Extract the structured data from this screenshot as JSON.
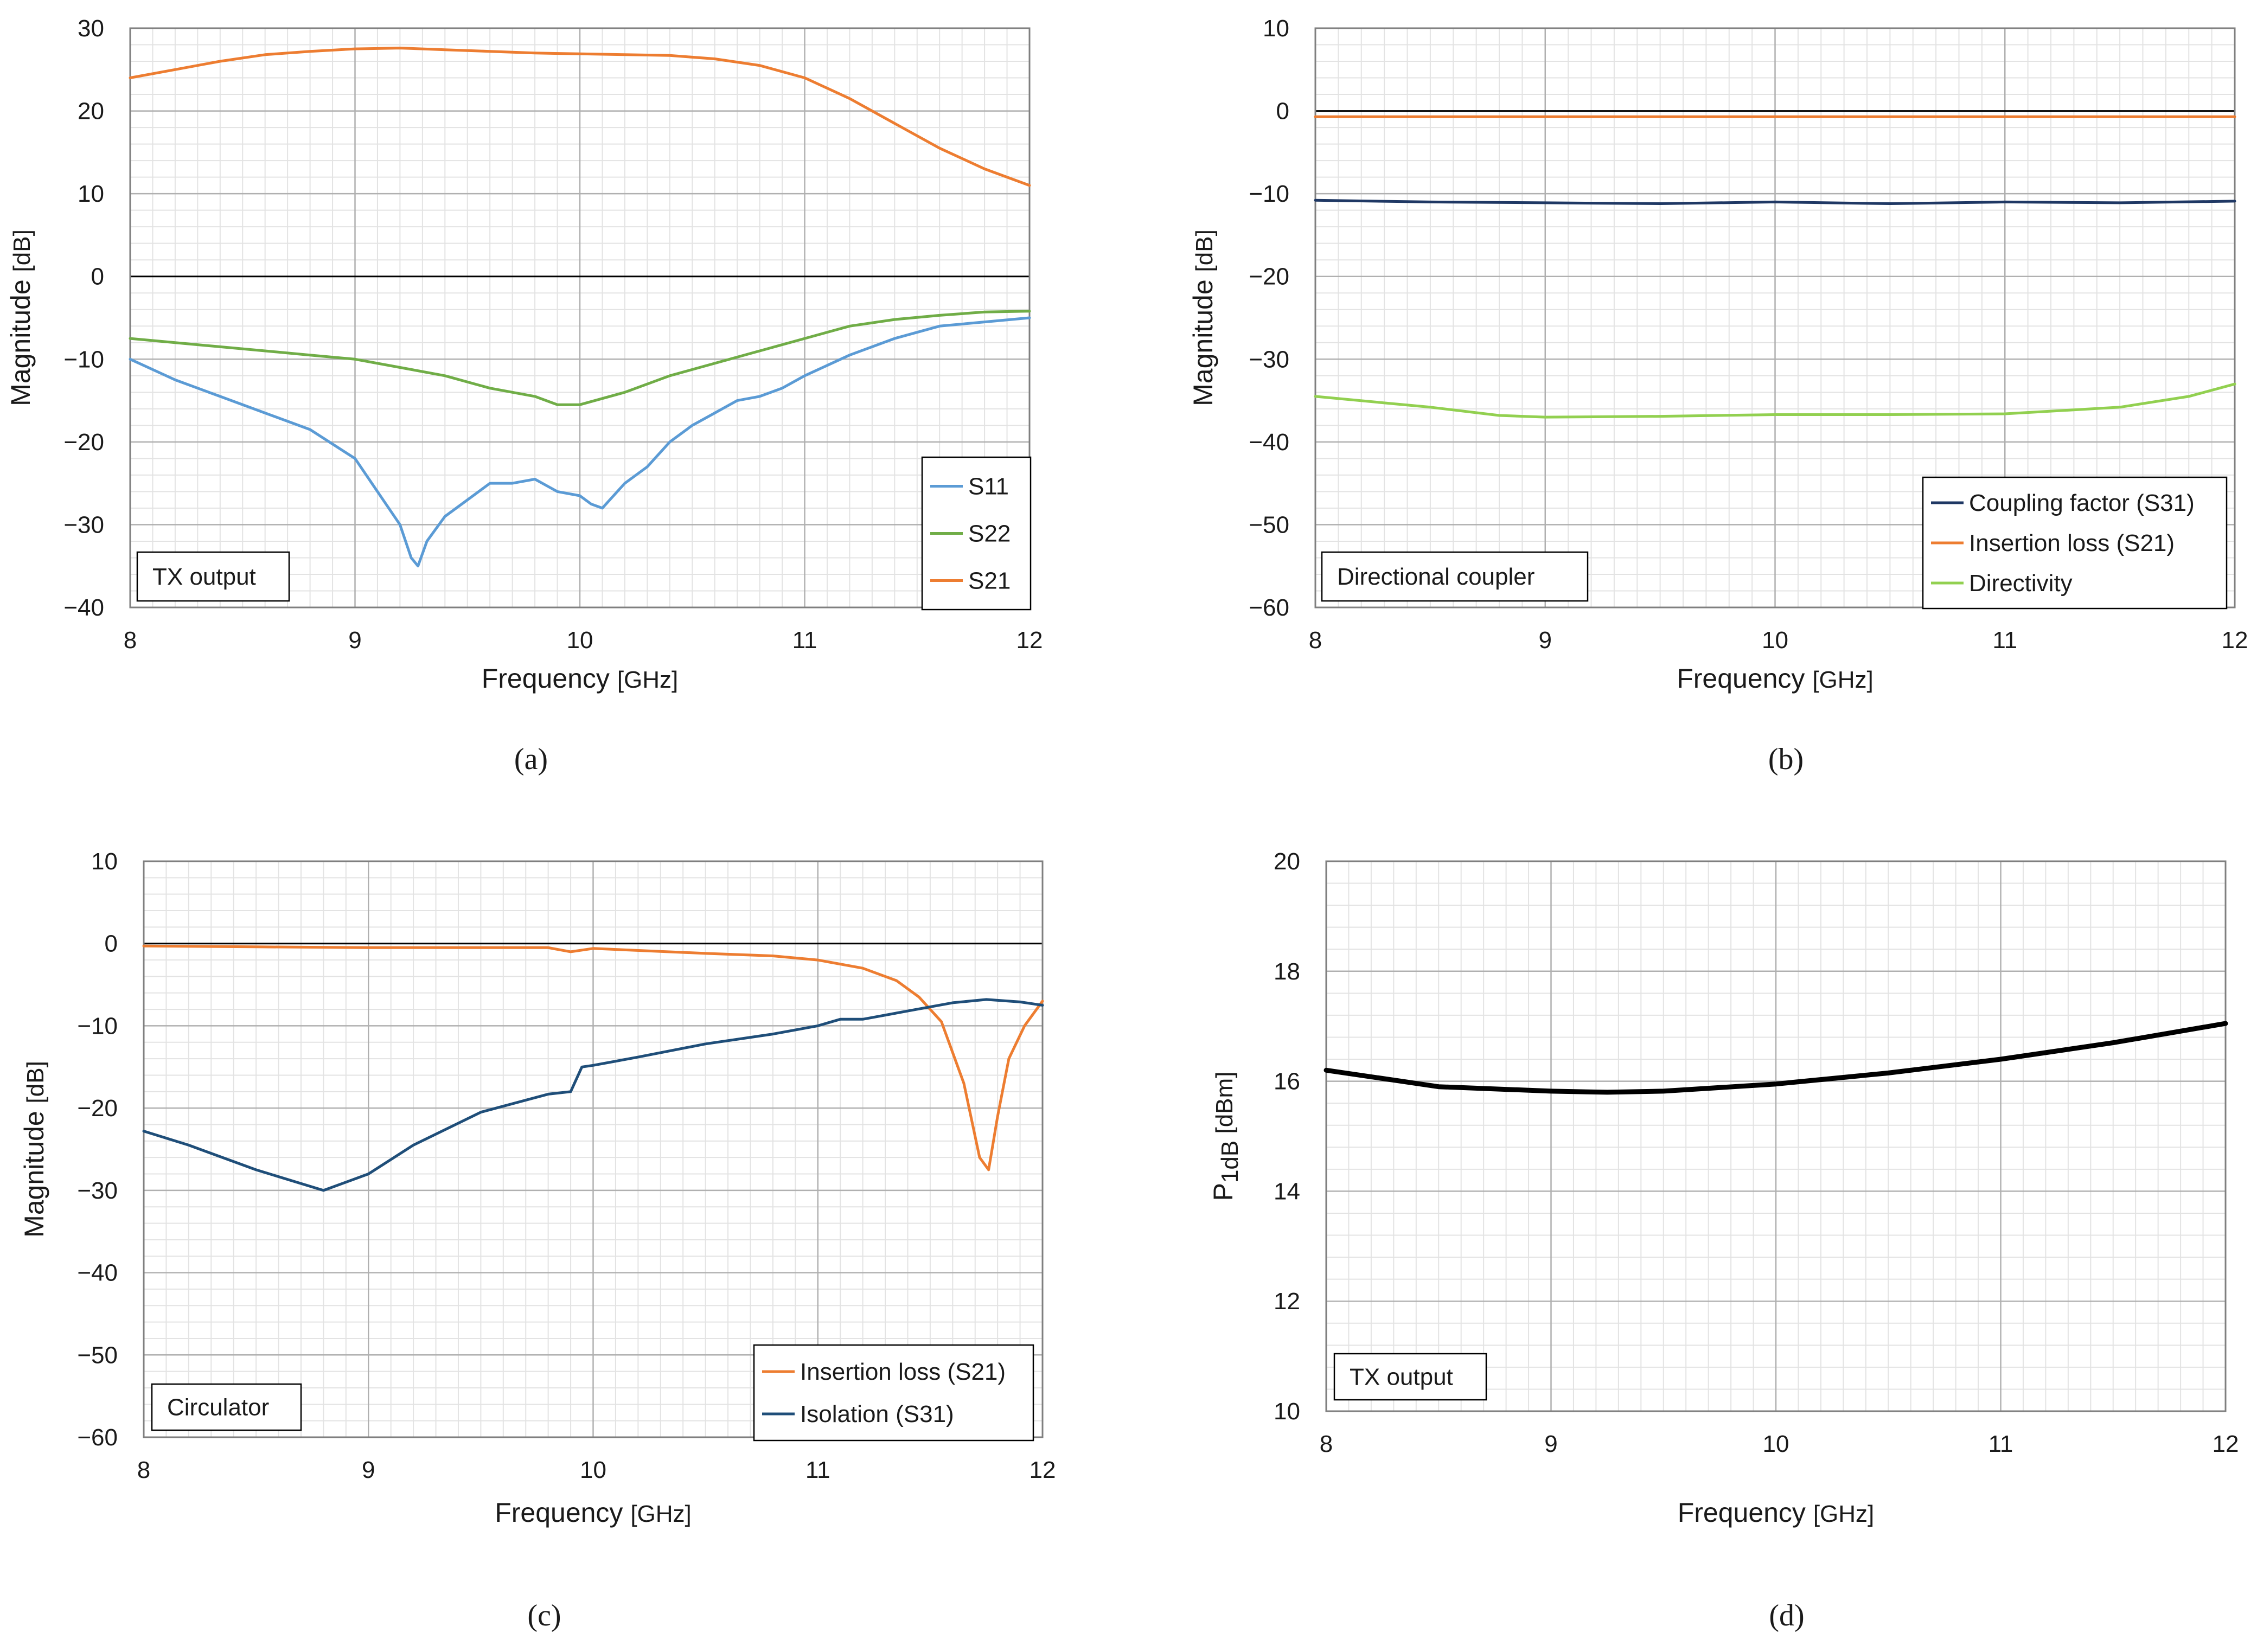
{
  "colors": {
    "s11": "#5b9bd5",
    "s22": "#70ad47",
    "s21": "#ed7d31",
    "coupling": "#1f3864",
    "insertion": "#ed7d31",
    "directivity": "#92d050",
    "isolation": "#1f4e79",
    "p1db": "#000000"
  },
  "chart_data": [
    {
      "id": "a",
      "panel_label": "(a)",
      "type": "line",
      "box_label": "TX output",
      "xlabel": "Frequency",
      "xunit": "[GHz]",
      "ylabel": "Magnitude",
      "yunit": "[dB]",
      "xlim": [
        8,
        12
      ],
      "ylim": [
        -40,
        30
      ],
      "xticks": [
        8,
        9,
        10,
        11,
        12
      ],
      "yticks": [
        -40,
        -30,
        -20,
        -10,
        0,
        10,
        20,
        30
      ],
      "legend_position": "bottom-right",
      "zero_line": true,
      "series": [
        {
          "name": "S11",
          "color_key": "s11",
          "x": [
            8.0,
            8.2,
            8.4,
            8.6,
            8.8,
            9.0,
            9.1,
            9.2,
            9.25,
            9.28,
            9.32,
            9.4,
            9.5,
            9.6,
            9.7,
            9.8,
            9.9,
            10.0,
            10.05,
            10.1,
            10.2,
            10.3,
            10.4,
            10.5,
            10.6,
            10.7,
            10.8,
            10.9,
            11.0,
            11.2,
            11.4,
            11.6,
            11.8,
            12.0
          ],
          "y": [
            -10,
            -12.5,
            -14.5,
            -16.5,
            -18.5,
            -22,
            -26,
            -30,
            -34,
            -35,
            -32,
            -29,
            -27,
            -25,
            -25,
            -24.5,
            -26,
            -26.5,
            -27.5,
            -28,
            -25,
            -23,
            -20,
            -18,
            -16.5,
            -15,
            -14.5,
            -13.5,
            -12,
            -9.5,
            -7.5,
            -6,
            -5.5,
            -5
          ]
        },
        {
          "name": "S22",
          "color_key": "s22",
          "x": [
            8.0,
            8.2,
            8.4,
            8.6,
            8.8,
            9.0,
            9.2,
            9.4,
            9.6,
            9.8,
            9.9,
            10.0,
            10.2,
            10.4,
            10.6,
            10.8,
            11.0,
            11.2,
            11.4,
            11.6,
            11.8,
            12.0
          ],
          "y": [
            -7.5,
            -8,
            -8.5,
            -9,
            -9.5,
            -10,
            -11,
            -12,
            -13.5,
            -14.5,
            -15.5,
            -15.5,
            -14,
            -12,
            -10.5,
            -9,
            -7.5,
            -6,
            -5.2,
            -4.7,
            -4.3,
            -4.2
          ]
        },
        {
          "name": "S21",
          "color_key": "s21",
          "x": [
            8.0,
            8.2,
            8.4,
            8.6,
            8.8,
            9.0,
            9.2,
            9.4,
            9.6,
            9.8,
            10.0,
            10.2,
            10.4,
            10.6,
            10.8,
            11.0,
            11.2,
            11.4,
            11.6,
            11.8,
            12.0
          ],
          "y": [
            24,
            25,
            26,
            26.8,
            27.2,
            27.5,
            27.6,
            27.4,
            27.2,
            27,
            26.9,
            26.8,
            26.7,
            26.3,
            25.5,
            24,
            21.5,
            18.5,
            15.5,
            13,
            11
          ]
        }
      ]
    },
    {
      "id": "b",
      "panel_label": "(b)",
      "type": "line",
      "box_label": "Directional coupler",
      "xlabel": "Frequency",
      "xunit": "[GHz]",
      "ylabel": "Magnitude",
      "yunit": "[dB]",
      "xlim": [
        8,
        12
      ],
      "ylim": [
        -60,
        10
      ],
      "xticks": [
        8,
        9,
        10,
        11,
        12
      ],
      "yticks": [
        -60,
        -50,
        -40,
        -30,
        -20,
        -10,
        0,
        10
      ],
      "legend_position": "bottom-right",
      "zero_line": true,
      "series": [
        {
          "name": "Coupling factor (S31)",
          "color_key": "coupling",
          "x": [
            8.0,
            8.5,
            9.0,
            9.5,
            10.0,
            10.5,
            11.0,
            11.5,
            12.0
          ],
          "y": [
            -10.8,
            -11,
            -11.1,
            -11.2,
            -11,
            -11.2,
            -11,
            -11.1,
            -10.9
          ]
        },
        {
          "name": "Insertion loss (S21)",
          "color_key": "insertion",
          "x": [
            8.0,
            9.0,
            10.0,
            11.0,
            12.0
          ],
          "y": [
            -0.7,
            -0.7,
            -0.7,
            -0.7,
            -0.7
          ]
        },
        {
          "name": "Directivity",
          "color_key": "directivity",
          "x": [
            8.0,
            8.5,
            8.8,
            9.0,
            9.5,
            10.0,
            10.5,
            11.0,
            11.5,
            11.8,
            12.0
          ],
          "y": [
            -34.5,
            -35.8,
            -36.8,
            -37,
            -36.9,
            -36.7,
            -36.7,
            -36.6,
            -35.8,
            -34.5,
            -33
          ]
        }
      ]
    },
    {
      "id": "c",
      "panel_label": "(c)",
      "type": "line",
      "box_label": "Circulator",
      "xlabel": "Frequency",
      "xunit": "[GHz]",
      "ylabel": "Magnitude",
      "yunit": "[dB]",
      "xlim": [
        8,
        12
      ],
      "ylim": [
        -60,
        10
      ],
      "xticks": [
        8,
        9,
        10,
        11,
        12
      ],
      "yticks": [
        -60,
        -50,
        -40,
        -30,
        -20,
        -10,
        0,
        10
      ],
      "legend_position": "bottom-right",
      "zero_line": true,
      "series": [
        {
          "name": "Insertion loss (S21)",
          "color_key": "insertion",
          "x": [
            8.0,
            8.5,
            9.0,
            9.5,
            9.8,
            9.9,
            10.0,
            10.5,
            10.8,
            11.0,
            11.2,
            11.35,
            11.45,
            11.55,
            11.65,
            11.72,
            11.76,
            11.8,
            11.85,
            11.92,
            12.0
          ],
          "y": [
            -0.3,
            -0.4,
            -0.5,
            -0.5,
            -0.5,
            -1,
            -0.6,
            -1.2,
            -1.5,
            -2,
            -3,
            -4.5,
            -6.5,
            -9.5,
            -17,
            -26,
            -27.5,
            -21,
            -14,
            -10,
            -7
          ]
        },
        {
          "name": "Isolation (S31)",
          "color_key": "isolation",
          "x": [
            8.0,
            8.2,
            8.5,
            8.8,
            9.0,
            9.2,
            9.5,
            9.8,
            9.9,
            9.95,
            10.0,
            10.2,
            10.5,
            10.8,
            11.0,
            11.1,
            11.2,
            11.4,
            11.6,
            11.75,
            11.9,
            12.0
          ],
          "y": [
            -22.8,
            -24.5,
            -27.5,
            -30,
            -28,
            -24.5,
            -20.5,
            -18.3,
            -18,
            -15,
            -14.8,
            -13.8,
            -12.2,
            -11,
            -10,
            -9.2,
            -9.2,
            -8.2,
            -7.2,
            -6.8,
            -7.1,
            -7.5
          ]
        }
      ]
    },
    {
      "id": "d",
      "panel_label": "(d)",
      "type": "line",
      "box_label": "TX output",
      "xlabel": "Frequency",
      "xunit": "[GHz]",
      "ylabel_main": "P",
      "ylabel_sub": "1dB",
      "yunit": "[dBm]",
      "xlim": [
        8,
        12
      ],
      "ylim": [
        10,
        20
      ],
      "xticks": [
        8,
        9,
        10,
        11,
        12
      ],
      "yticks": [
        10,
        12,
        14,
        16,
        18,
        20
      ],
      "legend_position": "none",
      "zero_line": false,
      "series": [
        {
          "name": "P1dB",
          "color_key": "p1db",
          "x": [
            8.0,
            8.5,
            9.0,
            9.25,
            9.5,
            10.0,
            10.5,
            11.0,
            11.5,
            12.0
          ],
          "y": [
            16.2,
            15.9,
            15.82,
            15.8,
            15.82,
            15.95,
            16.15,
            16.4,
            16.7,
            17.05
          ]
        }
      ]
    }
  ]
}
